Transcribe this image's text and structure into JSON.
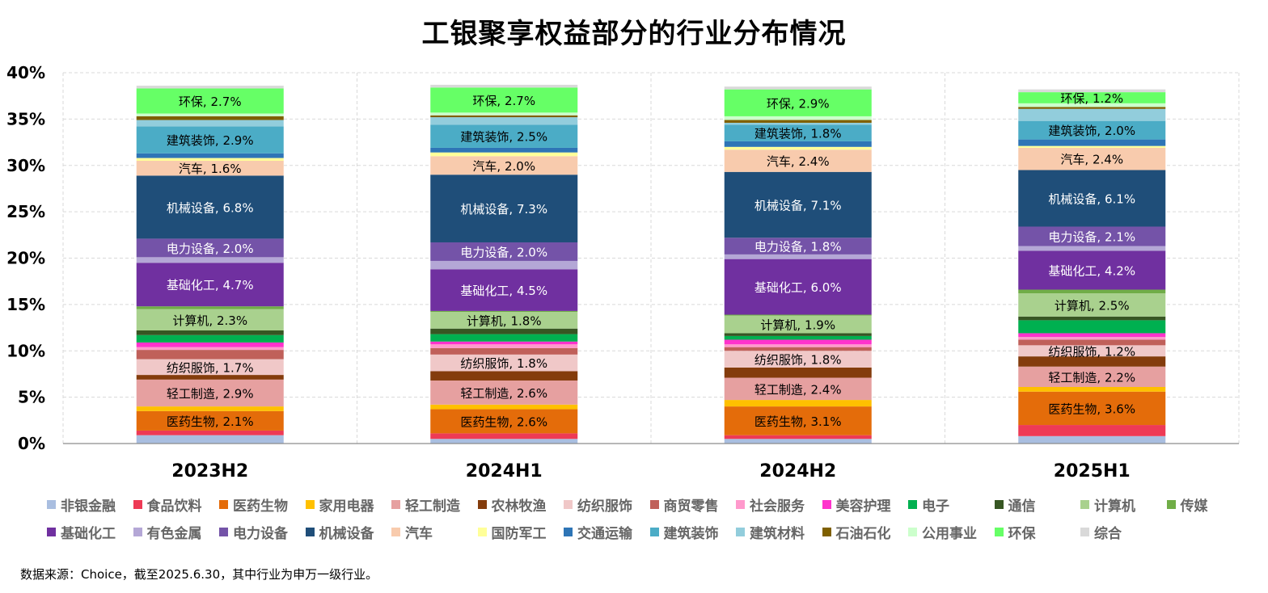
{
  "title": "工银聚享权益部分的行业分布情况",
  "source": "数据来源：Choice，截至2025.6.30，其中行业为申万一级行业。",
  "chart_data": {
    "type": "bar",
    "stacked": true,
    "categories": [
      "2023H2",
      "2024H1",
      "2024H2",
      "2025H1"
    ],
    "ylim": [
      0,
      40
    ],
    "yticks": [
      0,
      5,
      10,
      15,
      20,
      25,
      30,
      35,
      40
    ],
    "ytick_format": "{v}%",
    "grid": true,
    "legend_position": "bottom",
    "series": [
      {
        "name": "非银金融",
        "color": "#a9bee0",
        "values": [
          0.9,
          0.5,
          0.5,
          0.8
        ]
      },
      {
        "name": "食品饮料",
        "color": "#ee3a55",
        "values": [
          0.5,
          0.6,
          0.4,
          1.2
        ]
      },
      {
        "name": "医药生物",
        "color": "#e46c0a",
        "values": [
          2.1,
          2.6,
          3.1,
          3.6
        ]
      },
      {
        "name": "家用电器",
        "color": "#ffc000",
        "values": [
          0.5,
          0.5,
          0.7,
          0.5
        ]
      },
      {
        "name": "轻工制造",
        "color": "#e6a0a0",
        "values": [
          2.9,
          2.6,
          2.4,
          2.2
        ]
      },
      {
        "name": "农林牧渔",
        "color": "#843c0c",
        "values": [
          0.5,
          1.0,
          1.1,
          1.1
        ]
      },
      {
        "name": "纺织服饰",
        "color": "#f0c8c8",
        "values": [
          1.7,
          1.8,
          1.8,
          1.2
        ]
      },
      {
        "name": "商贸零售",
        "color": "#c0605a",
        "values": [
          1.0,
          0.7,
          0.4,
          0.6
        ]
      },
      {
        "name": "社会服务",
        "color": "#ff99cc",
        "values": [
          0.3,
          0.4,
          0.3,
          0.3
        ]
      },
      {
        "name": "美容护理",
        "color": "#ff33cc",
        "values": [
          0.5,
          0.3,
          0.5,
          0.4
        ]
      },
      {
        "name": "电子",
        "color": "#00b050",
        "values": [
          0.8,
          0.8,
          0.4,
          1.4
        ]
      },
      {
        "name": "通信",
        "color": "#375623",
        "values": [
          0.5,
          0.6,
          0.3,
          0.4
        ]
      },
      {
        "name": "计算机",
        "color": "#a9d18e",
        "values": [
          2.3,
          1.8,
          1.9,
          2.5
        ]
      },
      {
        "name": "传媒",
        "color": "#70ad47",
        "values": [
          0.3,
          0.1,
          0.1,
          0.4
        ]
      },
      {
        "name": "基础化工",
        "color": "#7030a0",
        "values": [
          4.7,
          4.5,
          6.0,
          4.2
        ]
      },
      {
        "name": "有色金属",
        "color": "#b4a7d6",
        "values": [
          0.6,
          0.9,
          0.5,
          0.5
        ]
      },
      {
        "name": "电力设备",
        "color": "#7453a8",
        "values": [
          2.0,
          2.0,
          1.8,
          2.1
        ]
      },
      {
        "name": "机械设备",
        "color": "#1f4e79",
        "values": [
          6.8,
          7.3,
          7.1,
          6.1
        ]
      },
      {
        "name": "汽车",
        "color": "#f8cbad",
        "values": [
          1.6,
          2.0,
          2.4,
          2.4
        ]
      },
      {
        "name": "国防军工",
        "color": "#ffff99",
        "values": [
          0.3,
          0.4,
          0.3,
          0.2
        ]
      },
      {
        "name": "交通运输",
        "color": "#2e75b6",
        "values": [
          0.5,
          0.5,
          0.6,
          0.7
        ]
      },
      {
        "name": "建筑装饰",
        "color": "#4bacc6",
        "values": [
          2.9,
          2.5,
          1.8,
          2.0
        ]
      },
      {
        "name": "建筑材料",
        "color": "#92cddc",
        "values": [
          0.7,
          0.8,
          0.2,
          1.3
        ]
      },
      {
        "name": "石油石化",
        "color": "#7f6000",
        "values": [
          0.4,
          0.2,
          0.3,
          0.2
        ]
      },
      {
        "name": "公用事业",
        "color": "#ccffcc",
        "values": [
          0.3,
          0.3,
          0.4,
          0.4
        ]
      },
      {
        "name": "环保",
        "color": "#66ff66",
        "values": [
          2.7,
          2.7,
          2.9,
          1.2
        ]
      },
      {
        "name": "综合",
        "color": "#d9d9d9",
        "values": [
          0.3,
          0.3,
          0.3,
          0.3
        ]
      }
    ],
    "data_labels": [
      {
        "series": "医药生物",
        "text": [
          "医药生物, 2.1%",
          "医药生物, 2.6%",
          "医药生物, 3.1%",
          "医药生物, 3.6%"
        ],
        "color": "#000000"
      },
      {
        "series": "轻工制造",
        "text": [
          "轻工制造, 2.9%",
          "轻工制造, 2.6%",
          "轻工制造, 2.4%",
          "轻工制造, 2.2%"
        ],
        "color": "#000000"
      },
      {
        "series": "纺织服饰",
        "text": [
          "纺织服饰, 1.7%",
          "纺织服饰, 1.8%",
          "纺织服饰, 1.8%",
          "纺织服饰, 1.2%"
        ],
        "color": "#000000"
      },
      {
        "series": "计算机",
        "text": [
          "计算机, 2.3%",
          "计算机, 1.8%",
          "计算机, 1.9%",
          "计算机, 2.5%"
        ],
        "color": "#000000"
      },
      {
        "series": "基础化工",
        "text": [
          "基础化工, 4.7%",
          "基础化工, 4.5%",
          "基础化工, 6.0%",
          "基础化工, 4.2%"
        ],
        "color": "#ffffff"
      },
      {
        "series": "电力设备",
        "text": [
          "电力设备, 2.0%",
          "电力设备, 2.0%",
          "电力设备, 1.8%",
          "电力设备, 2.1%"
        ],
        "color": "#ffffff"
      },
      {
        "series": "机械设备",
        "text": [
          "机械设备, 6.8%",
          "机械设备, 7.3%",
          "机械设备, 7.1%",
          "机械设备, 6.1%"
        ],
        "color": "#ffffff"
      },
      {
        "series": "汽车",
        "text": [
          "汽车, 1.6%",
          "汽车, 2.0%",
          "汽车, 2.4%",
          "汽车, 2.4%"
        ],
        "color": "#000000"
      },
      {
        "series": "建筑装饰",
        "text": [
          "建筑装饰, 2.9%",
          "建筑装饰, 2.5%",
          "建筑装饰, 1.8%",
          "建筑装饰, 2.0%"
        ],
        "color": "#000000"
      },
      {
        "series": "环保",
        "text": [
          "环保, 2.7%",
          "环保, 2.7%",
          "环保, 2.9%",
          "环保, 1.2%"
        ],
        "color": "#000000"
      }
    ]
  }
}
